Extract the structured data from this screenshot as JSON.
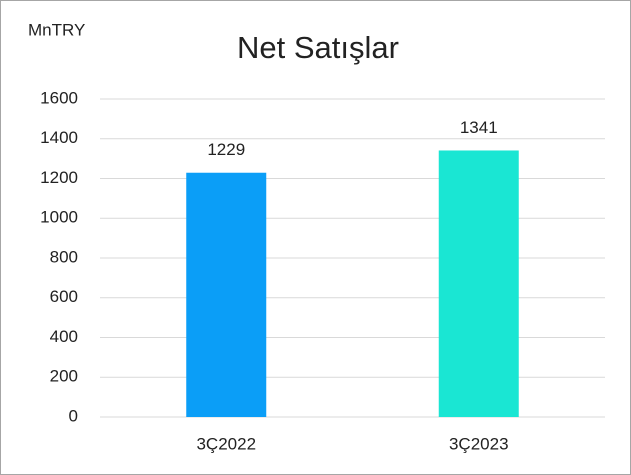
{
  "chart_data": {
    "type": "bar",
    "title": "Net Satışlar",
    "ylabel": "MnTRY",
    "categories": [
      "3Ç2022",
      "3Ç2023"
    ],
    "values": [
      1229,
      1341
    ],
    "colors": [
      "#0b9ef7",
      "#1ae6d3"
    ],
    "ylim": [
      0,
      1600
    ],
    "yticks": [
      0,
      200,
      400,
      600,
      800,
      1000,
      1200,
      1400,
      1600
    ],
    "grid": true
  }
}
